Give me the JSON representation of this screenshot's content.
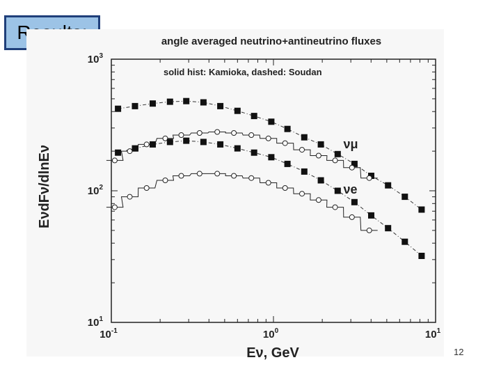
{
  "slide": {
    "title": "Results:",
    "page_number": "12"
  },
  "chart_data": {
    "type": "scatter",
    "title": "angle averaged neutrino+antineutrino fluxes",
    "subtitle": "solid hist: Kamioka, dashed: Soudan",
    "xlabel": "Eν, GeV",
    "ylabel": "EνdFν/dlnEν",
    "xscale": "log",
    "yscale": "log",
    "xlim": [
      0.1,
      10
    ],
    "ylim": [
      10,
      1000
    ],
    "x_ticks": [
      "10",
      "10",
      "10"
    ],
    "x_tick_exponents": [
      "-1",
      "0",
      "1"
    ],
    "y_ticks": [
      "10",
      "10",
      "10"
    ],
    "y_tick_exponents": [
      "1",
      "2",
      "3"
    ],
    "annotations": [
      {
        "text": "νμ",
        "x": 2.7,
        "y": 210
      },
      {
        "text": "νe",
        "x": 2.7,
        "y": 95
      }
    ],
    "series": [
      {
        "name": "νμ (squares, upper)",
        "marker": "filled-square",
        "x": [
          0.11,
          0.14,
          0.18,
          0.23,
          0.29,
          0.37,
          0.47,
          0.6,
          0.76,
          0.97,
          1.22,
          1.55,
          1.96,
          2.49,
          3.16,
          4.01,
          5.09,
          6.46,
          8.2
        ],
        "y": [
          420,
          440,
          460,
          475,
          480,
          470,
          440,
          405,
          370,
          335,
          295,
          255,
          225,
          190,
          160,
          130,
          110,
          90,
          72
        ]
      },
      {
        "name": "νμ (circles, upper)",
        "marker": "open-circle",
        "x": [
          0.105,
          0.13,
          0.165,
          0.215,
          0.27,
          0.35,
          0.45,
          0.57,
          0.73,
          0.93,
          1.18,
          1.5,
          1.9,
          2.4,
          3.05,
          3.9
        ],
        "y": [
          170,
          200,
          225,
          250,
          265,
          275,
          280,
          275,
          265,
          250,
          230,
          205,
          185,
          170,
          150,
          125
        ]
      },
      {
        "name": "νe (squares, lower)",
        "marker": "filled-square",
        "x": [
          0.11,
          0.14,
          0.18,
          0.23,
          0.29,
          0.37,
          0.47,
          0.6,
          0.76,
          0.97,
          1.22,
          1.55,
          1.96,
          2.49,
          3.16,
          4.01,
          5.09,
          6.46,
          8.2
        ],
        "y": [
          195,
          210,
          225,
          235,
          240,
          235,
          225,
          210,
          195,
          180,
          160,
          140,
          120,
          100,
          82,
          65,
          52,
          41,
          32
        ]
      },
      {
        "name": "νe (circles, lower)",
        "marker": "open-circle",
        "x": [
          0.105,
          0.13,
          0.165,
          0.215,
          0.27,
          0.35,
          0.45,
          0.57,
          0.73,
          0.93,
          1.18,
          1.5,
          1.9,
          2.4,
          3.05,
          3.9
        ],
        "y": [
          75,
          90,
          105,
          120,
          130,
          135,
          135,
          130,
          125,
          115,
          105,
          95,
          85,
          75,
          63,
          50
        ]
      }
    ]
  }
}
